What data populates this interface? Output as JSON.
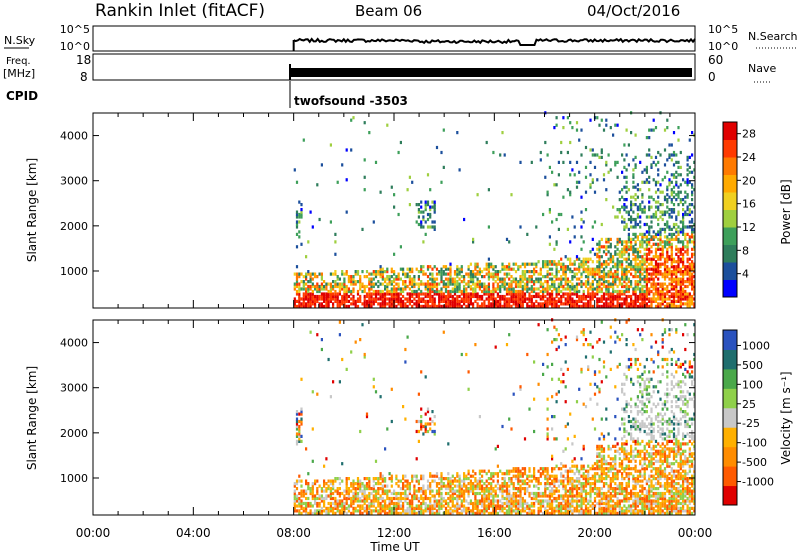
{
  "header": {
    "station": "Rankin Inlet (fitACF)",
    "beam": "Beam 06",
    "date": "04/Oct/2016"
  },
  "top_panels": {
    "noise": {
      "left_label": "N.Sky",
      "right_label": "N.Search",
      "left_ticks": [
        "10^5",
        "10^0"
      ],
      "right_ticks": [
        "10^5",
        "10^0"
      ]
    },
    "freq": {
      "left_label": "Freq.",
      "left_units": "[MHz]",
      "right_label": "Nave",
      "left_ticks": [
        "18",
        "8"
      ],
      "right_ticks": [
        "60",
        "0"
      ]
    },
    "cpid": {
      "label": "CPID",
      "program": "twofsound -3503"
    }
  },
  "colors": {
    "power_scale": [
      "#0000ff",
      "#1c4f9c",
      "#2e7d5b",
      "#3d9f5a",
      "#9fcf3f",
      "#f0d020",
      "#ffaa00",
      "#ff7a00",
      "#ff3a00",
      "#e00000"
    ],
    "velocity_scale": [
      "#2a52be",
      "#1f6e6e",
      "#4aa84a",
      "#8fd04a",
      "#c8c8c8",
      "#ffb000",
      "#ff8c00",
      "#ff5a00",
      "#e00000"
    ]
  },
  "chart_data": [
    {
      "type": "heatmap",
      "title": "Power",
      "ylabel": "Slant Range [km]",
      "xlabel": "Time UT",
      "ylim": [
        180,
        4500
      ],
      "yticks": [
        1000,
        2000,
        3000,
        4000
      ],
      "x_ticks": [
        "00:00",
        "04:00",
        "08:00",
        "12:00",
        "16:00",
        "20:00",
        "00:00"
      ],
      "xlim_hours": [
        0,
        24
      ],
      "data_start_hour": 8,
      "colorbar": {
        "label": "Power [dB]",
        "ticks": [
          "4",
          "8",
          "12",
          "16",
          "20",
          "24",
          "28"
        ],
        "range": [
          0,
          30
        ]
      }
    },
    {
      "type": "heatmap",
      "title": "Velocity",
      "ylabel": "Slant Range [km]",
      "xlabel": "Time UT",
      "ylim": [
        180,
        4500
      ],
      "yticks": [
        1000,
        2000,
        3000,
        4000
      ],
      "x_ticks": [
        "00:00",
        "04:00",
        "08:00",
        "12:00",
        "16:00",
        "20:00",
        "00:00"
      ],
      "xlim_hours": [
        0,
        24
      ],
      "data_start_hour": 8,
      "colorbar": {
        "label": "Velocity [m s⁻¹]",
        "ticks": [
          "1000",
          "500",
          "100",
          "25",
          "-25",
          "-100",
          "-500",
          "-1000"
        ]
      }
    }
  ],
  "x_axis": {
    "label": "Time UT",
    "ticks": [
      "00:00",
      "04:00",
      "08:00",
      "12:00",
      "16:00",
      "20:00",
      "00:00"
    ]
  }
}
